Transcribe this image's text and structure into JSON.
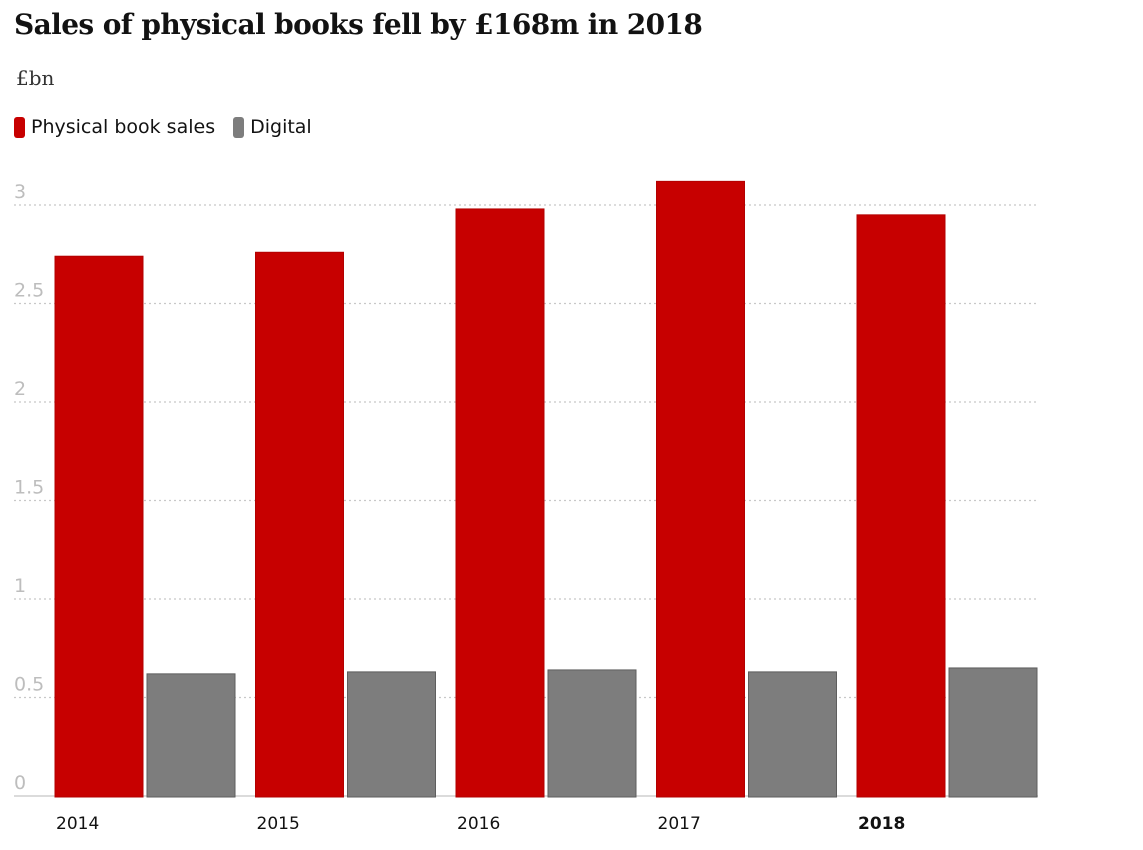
{
  "header": {
    "title": "Sales of physical books fell by £168m in 2018",
    "unit": "£bn"
  },
  "legend": [
    {
      "label": "Physical book sales",
      "color": "#c70000"
    },
    {
      "label": "Digital",
      "color": "#7d7d7d"
    }
  ],
  "chart_data": {
    "type": "bar",
    "title": "Sales of physical books fell by £168m in 2018",
    "ylabel": "£bn",
    "xlabel": "",
    "categories": [
      "2014",
      "2015",
      "2016",
      "2017",
      "2018"
    ],
    "highlight_category": "2018",
    "series": [
      {
        "name": "Physical book sales",
        "color": "#c70000",
        "values": [
          2.74,
          2.76,
          2.98,
          3.12,
          2.95
        ]
      },
      {
        "name": "Digital",
        "color": "#7d7d7d",
        "values": [
          0.62,
          0.63,
          0.64,
          0.63,
          0.65
        ]
      }
    ],
    "ylim": [
      0,
      3
    ],
    "yticks": [
      0,
      0.5,
      1,
      1.5,
      2,
      2.5,
      3
    ],
    "ytick_labels": [
      "0",
      "0.5",
      "1",
      "1.5",
      "2",
      "2.5",
      "3"
    ],
    "grid": true,
    "legend_position": "top-left"
  }
}
